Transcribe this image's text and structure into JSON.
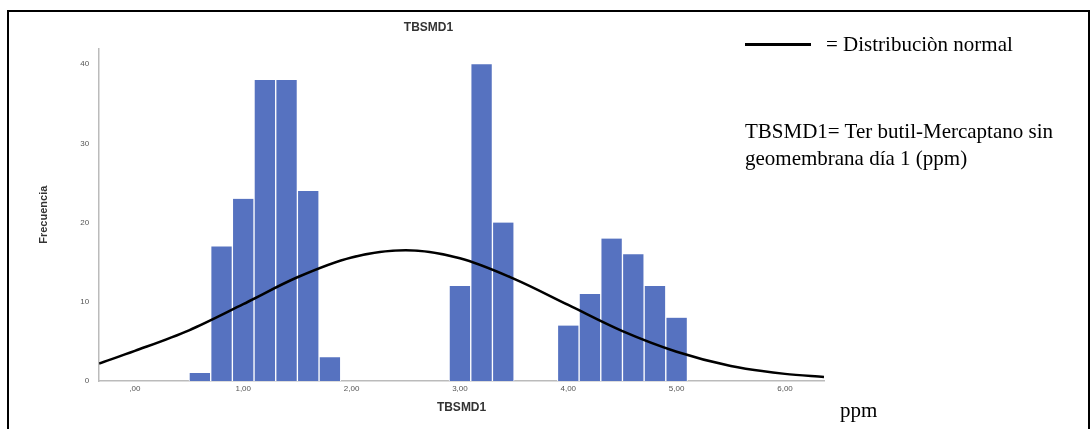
{
  "chart_data": {
    "type": "histogram",
    "title": "TBSMD1",
    "xlabel": "TBSMD1",
    "ylabel": "Frecuencia",
    "bins": [
      0.5,
      0.7,
      0.9,
      1.1,
      1.3,
      1.5,
      1.7,
      1.9,
      2.1,
      2.3,
      2.5,
      2.7,
      2.9,
      3.1,
      3.3,
      3.5,
      3.7,
      3.9,
      4.1,
      4.3,
      4.5,
      4.7,
      4.9,
      5.1
    ],
    "values": [
      1,
      17,
      23,
      38,
      38,
      24,
      3,
      0,
      0,
      0,
      0,
      0,
      12,
      40,
      20,
      0,
      0,
      7,
      11,
      18,
      16,
      12,
      8
    ],
    "color": "#5672c0",
    "series": [
      {
        "type": "line",
        "name": "= Distribuciòn normal",
        "color": "#000000",
        "x": [
          -0.33,
          0,
          0.5,
          1,
          1.5,
          2,
          2.5,
          3,
          3.5,
          4,
          4.5,
          5,
          5.5,
          6,
          6.36
        ],
        "values": [
          2.2,
          3.8,
          6.4,
          9.7,
          13.1,
          15.6,
          16.5,
          15.5,
          12.9,
          9.6,
          6.3,
          3.7,
          1.9,
          0.9,
          0.5
        ]
      }
    ],
    "xlim": [
      -0.33,
      6.36
    ],
    "xticks": [
      {
        "value": 0,
        "label": ",00"
      },
      {
        "value": 1,
        "label": "1,00"
      },
      {
        "value": 2,
        "label": "2,00"
      },
      {
        "value": 3,
        "label": "3,00"
      },
      {
        "value": 4,
        "label": "4,00"
      },
      {
        "value": 5,
        "label": "5,00"
      },
      {
        "value": 6,
        "label": "6,00"
      }
    ],
    "ylim": [
      0,
      42
    ],
    "yticks": [
      0,
      10,
      20,
      30,
      40
    ],
    "grid": false,
    "legend": "top right",
    "marker": "none",
    "line_style": "solid",
    "annotations": [
      "TBSMD1= Ter butil-Mercaptano sin geomembrana día 1 (ppm)",
      "ppm"
    ]
  }
}
